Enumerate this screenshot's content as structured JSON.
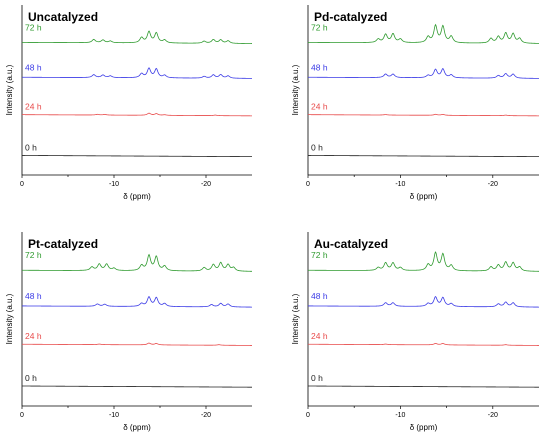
{
  "colors": {
    "72 h": "#2e9a2e",
    "48 h": "#3a3ae6",
    "24 h": "#e84a4a",
    "0 h": "#222222"
  },
  "chart_data": [
    {
      "type": "line",
      "title": "Uncatalyzed",
      "xlabel": "δ (ppm)",
      "ylabel": "Intensity (a.u.)",
      "xlim": [
        0,
        -25
      ],
      "xticks": [
        "0",
        "-10",
        "-20"
      ],
      "grid": false,
      "series": [
        {
          "name": "72 h",
          "peaks": [
            [
              -7.8,
              0.28
            ],
            [
              -8.8,
              0.24
            ],
            [
              -9.6,
              0.15
            ],
            [
              -13.0,
              0.45
            ],
            [
              -13.8,
              0.95
            ],
            [
              -14.6,
              0.85
            ],
            [
              -15.5,
              0.25
            ],
            [
              -19.8,
              0.18
            ],
            [
              -20.8,
              0.32
            ],
            [
              -21.6,
              0.3
            ],
            [
              -22.4,
              0.22
            ]
          ]
        },
        {
          "name": "48 h",
          "peaks": [
            [
              -7.8,
              0.25
            ],
            [
              -8.8,
              0.22
            ],
            [
              -9.6,
              0.15
            ],
            [
              -13.0,
              0.35
            ],
            [
              -13.8,
              0.8
            ],
            [
              -14.6,
              0.75
            ],
            [
              -15.5,
              0.22
            ],
            [
              -19.8,
              0.15
            ],
            [
              -20.8,
              0.28
            ],
            [
              -21.6,
              0.3
            ],
            [
              -22.4,
              0.2
            ]
          ]
        },
        {
          "name": "24 h",
          "peaks": [
            [
              -8.2,
              0.06
            ],
            [
              -9.0,
              0.05
            ],
            [
              -13.8,
              0.18
            ],
            [
              -14.6,
              0.14
            ],
            [
              -15.5,
              0.05
            ],
            [
              -21.0,
              0.05
            ]
          ]
        },
        {
          "name": "0 h",
          "peaks": []
        }
      ]
    },
    {
      "type": "line",
      "title": "Pd-catalyzed",
      "xlabel": "δ (ppm)",
      "ylabel": "Intensity (a.u.)",
      "xlim": [
        0,
        -25
      ],
      "xticks": [
        "0",
        "-10",
        "-20"
      ],
      "grid": false,
      "series": [
        {
          "name": "72 h",
          "peaks": [
            [
              -7.6,
              0.3
            ],
            [
              -8.4,
              0.7
            ],
            [
              -9.2,
              0.75
            ],
            [
              -10.0,
              0.3
            ],
            [
              -13.0,
              0.5
            ],
            [
              -13.8,
              1.45
            ],
            [
              -14.6,
              1.4
            ],
            [
              -15.5,
              0.55
            ],
            [
              -19.8,
              0.4
            ],
            [
              -20.6,
              0.55
            ],
            [
              -21.4,
              0.85
            ],
            [
              -22.2,
              0.8
            ],
            [
              -22.9,
              0.4
            ]
          ]
        },
        {
          "name": "48 h",
          "peaks": [
            [
              -8.4,
              0.3
            ],
            [
              -9.2,
              0.3
            ],
            [
              -13.0,
              0.2
            ],
            [
              -13.8,
              0.7
            ],
            [
              -14.6,
              0.75
            ],
            [
              -15.5,
              0.25
            ],
            [
              -20.6,
              0.22
            ],
            [
              -21.4,
              0.38
            ],
            [
              -22.2,
              0.35
            ]
          ]
        },
        {
          "name": "24 h",
          "peaks": [
            [
              -8.4,
              0.04
            ],
            [
              -13.8,
              0.08
            ],
            [
              -14.6,
              0.08
            ],
            [
              -21.4,
              0.05
            ]
          ]
        },
        {
          "name": "0 h",
          "peaks": []
        }
      ]
    },
    {
      "type": "line",
      "title": "Pt-catalyzed",
      "xlabel": "δ (ppm)",
      "ylabel": "Intensity (a.u.)",
      "xlim": [
        0,
        -25
      ],
      "xticks": [
        "0",
        "-10",
        "-20"
      ],
      "grid": false,
      "series": [
        {
          "name": "72 h",
          "peaks": [
            [
              -7.6,
              0.3
            ],
            [
              -8.4,
              0.55
            ],
            [
              -9.2,
              0.55
            ],
            [
              -10.0,
              0.2
            ],
            [
              -13.0,
              0.45
            ],
            [
              -13.8,
              1.3
            ],
            [
              -14.6,
              1.2
            ],
            [
              -15.5,
              0.4
            ],
            [
              -19.8,
              0.3
            ],
            [
              -20.8,
              0.55
            ],
            [
              -21.6,
              0.7
            ],
            [
              -22.4,
              0.55
            ],
            [
              -23.0,
              0.3
            ]
          ]
        },
        {
          "name": "48 h",
          "peaks": [
            [
              -8.2,
              0.2
            ],
            [
              -9.0,
              0.18
            ],
            [
              -13.0,
              0.25
            ],
            [
              -13.8,
              0.8
            ],
            [
              -14.6,
              0.75
            ],
            [
              -15.5,
              0.25
            ],
            [
              -20.6,
              0.2
            ],
            [
              -21.6,
              0.3
            ],
            [
              -22.4,
              0.25
            ]
          ]
        },
        {
          "name": "24 h",
          "peaks": [
            [
              -8.4,
              0.05
            ],
            [
              -13.8,
              0.15
            ],
            [
              -14.6,
              0.12
            ],
            [
              -21.4,
              0.05
            ]
          ]
        },
        {
          "name": "0 h",
          "peaks": []
        }
      ]
    },
    {
      "type": "line",
      "title": "Au-catalyzed",
      "xlabel": "δ (ppm)",
      "ylabel": "Intensity (a.u.)",
      "xlim": [
        0,
        -25
      ],
      "xticks": [
        "0",
        "-10",
        "-20"
      ],
      "grid": false,
      "series": [
        {
          "name": "72 h",
          "peaks": [
            [
              -7.6,
              0.25
            ],
            [
              -8.4,
              0.65
            ],
            [
              -9.2,
              0.65
            ],
            [
              -10.0,
              0.25
            ],
            [
              -13.0,
              0.5
            ],
            [
              -13.8,
              1.5
            ],
            [
              -14.6,
              1.4
            ],
            [
              -15.5,
              0.45
            ],
            [
              -19.8,
              0.35
            ],
            [
              -20.6,
              0.5
            ],
            [
              -21.4,
              0.75
            ],
            [
              -22.2,
              0.7
            ],
            [
              -22.9,
              0.35
            ]
          ]
        },
        {
          "name": "48 h",
          "peaks": [
            [
              -8.4,
              0.3
            ],
            [
              -9.2,
              0.3
            ],
            [
              -13.0,
              0.25
            ],
            [
              -13.8,
              0.8
            ],
            [
              -14.6,
              0.75
            ],
            [
              -15.5,
              0.25
            ],
            [
              -20.6,
              0.25
            ],
            [
              -21.4,
              0.4
            ],
            [
              -22.2,
              0.35
            ]
          ]
        },
        {
          "name": "24 h",
          "peaks": [
            [
              -8.4,
              0.05
            ],
            [
              -13.8,
              0.12
            ],
            [
              -14.6,
              0.12
            ],
            [
              -21.4,
              0.05
            ]
          ]
        },
        {
          "name": "0 h",
          "peaks": []
        }
      ]
    }
  ]
}
